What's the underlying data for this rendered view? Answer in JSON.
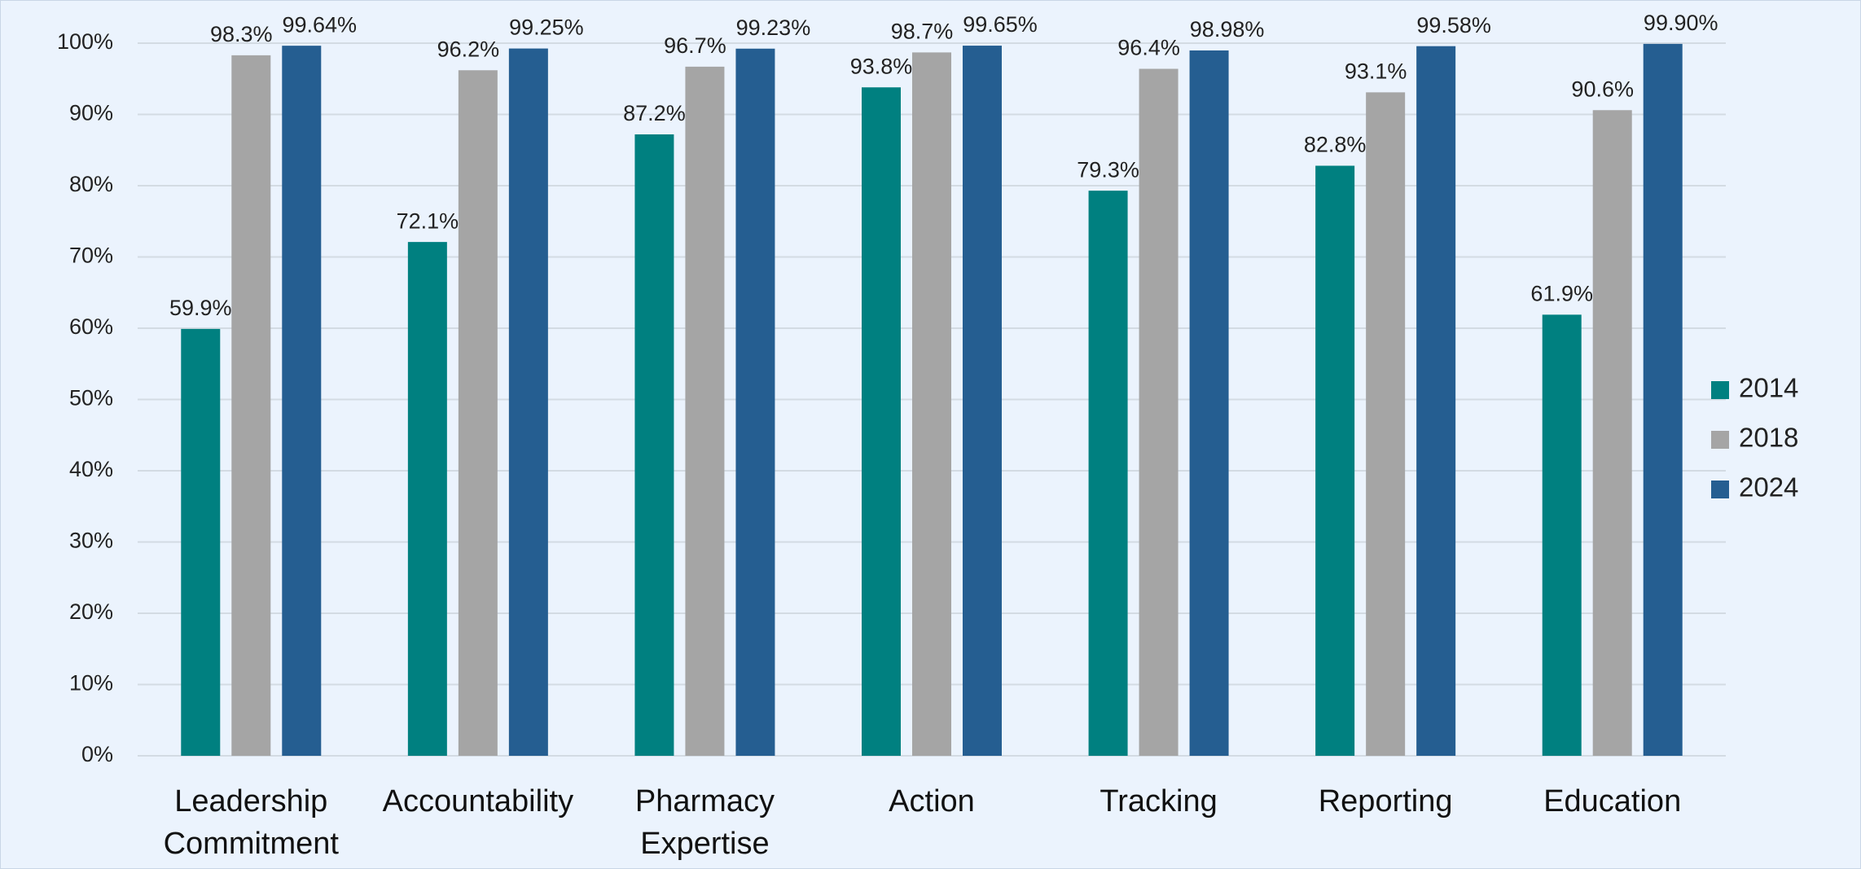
{
  "chart_data": {
    "type": "bar",
    "categories": [
      "Leadership Commitment",
      "Accountability",
      "Pharmacy Expertise",
      "Action",
      "Tracking",
      "Reporting",
      "Education"
    ],
    "series": [
      {
        "name": "2014",
        "color": "#008080",
        "values": [
          59.9,
          72.1,
          87.2,
          93.8,
          79.3,
          82.8,
          61.9
        ],
        "value_labels": [
          "59.9%",
          "72.1%",
          "87.2%",
          "93.8%",
          "79.3%",
          "82.8%",
          "61.9%"
        ]
      },
      {
        "name": "2018",
        "color": "#a5a5a5",
        "values": [
          98.3,
          96.2,
          96.7,
          98.7,
          96.4,
          93.1,
          90.6
        ],
        "value_labels": [
          "98.3%",
          "96.2%",
          "96.7%",
          "98.7%",
          "96.4%",
          "93.1%",
          "90.6%"
        ]
      },
      {
        "name": "2024",
        "color": "#255e91",
        "values": [
          99.64,
          99.25,
          99.23,
          99.65,
          98.98,
          99.58,
          99.9
        ],
        "value_labels": [
          "99.64%",
          "99.25%",
          "99.23%",
          "99.65%",
          "98.98%",
          "99.58%",
          "99.90%"
        ]
      }
    ],
    "ylim": [
      0,
      100
    ],
    "yticks": [
      {
        "value": 0,
        "label": "0%"
      },
      {
        "value": 10,
        "label": "10%"
      },
      {
        "value": 20,
        "label": "20%"
      },
      {
        "value": 30,
        "label": "30%"
      },
      {
        "value": 40,
        "label": "40%"
      },
      {
        "value": 50,
        "label": "50%"
      },
      {
        "value": 60,
        "label": "60%"
      },
      {
        "value": 70,
        "label": "70%"
      },
      {
        "value": 80,
        "label": "80%"
      },
      {
        "value": 90,
        "label": "90%"
      },
      {
        "value": 100,
        "label": "100%"
      }
    ],
    "grid": true,
    "legend": "right"
  }
}
